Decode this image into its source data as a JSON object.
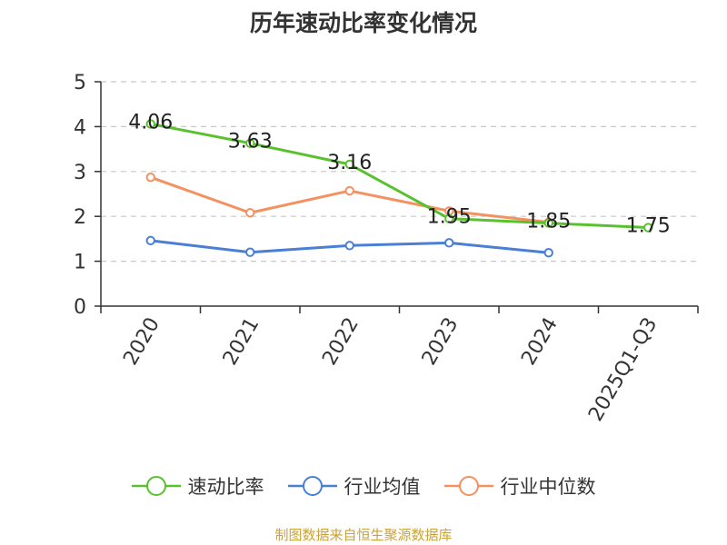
{
  "chart_data": {
    "type": "line",
    "title": "历年速动比率变化情况",
    "categories": [
      "2020",
      "2021",
      "2022",
      "2023",
      "2024",
      "2025Q1-Q3"
    ],
    "ylim": [
      0,
      5
    ],
    "yticks": [
      "0",
      "1",
      "2",
      "3",
      "4",
      "5"
    ],
    "grid": true,
    "legend_position": "bottom",
    "series": [
      {
        "name": "速动比率",
        "color": "#5ac12e",
        "labels": true,
        "values": [
          4.06,
          3.63,
          3.16,
          1.95,
          1.85,
          1.75
        ]
      },
      {
        "name": "行业均值",
        "color": "#4a7fd6",
        "labels": false,
        "values": [
          1.46,
          1.2,
          1.35,
          1.41,
          1.19,
          null
        ]
      },
      {
        "name": "行业中位数",
        "color": "#f39160",
        "labels": false,
        "values": [
          2.87,
          2.08,
          2.57,
          2.12,
          1.87,
          null
        ]
      }
    ],
    "data_labels": [
      "4.06",
      "3.63",
      "3.16",
      "1.95",
      "1.85",
      "1.75"
    ]
  },
  "source_text": "制图数据来自恒生聚源数据库"
}
